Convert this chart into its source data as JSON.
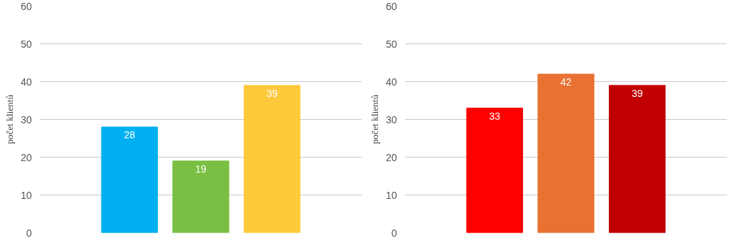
{
  "chart_data": [
    {
      "type": "bar",
      "ylabel": "počet klientů",
      "categories": [
        null,
        null,
        null
      ],
      "values": [
        28,
        19,
        39
      ],
      "colors": [
        "#00b0f0",
        "#7abf43",
        "#ffc93c"
      ],
      "ylim": [
        0,
        60
      ],
      "yticks": [
        0,
        10,
        20,
        30,
        40,
        50,
        60
      ],
      "grid": "y",
      "data_labels": true
    },
    {
      "type": "bar",
      "ylabel": "počet klientů",
      "categories": [
        null,
        null,
        null
      ],
      "values": [
        33,
        42,
        39
      ],
      "colors": [
        "#ff0000",
        "#e97132",
        "#c00000"
      ],
      "ylim": [
        0,
        60
      ],
      "yticks": [
        0,
        10,
        20,
        30,
        40,
        50,
        60
      ],
      "grid": "y",
      "data_labels": true
    }
  ]
}
